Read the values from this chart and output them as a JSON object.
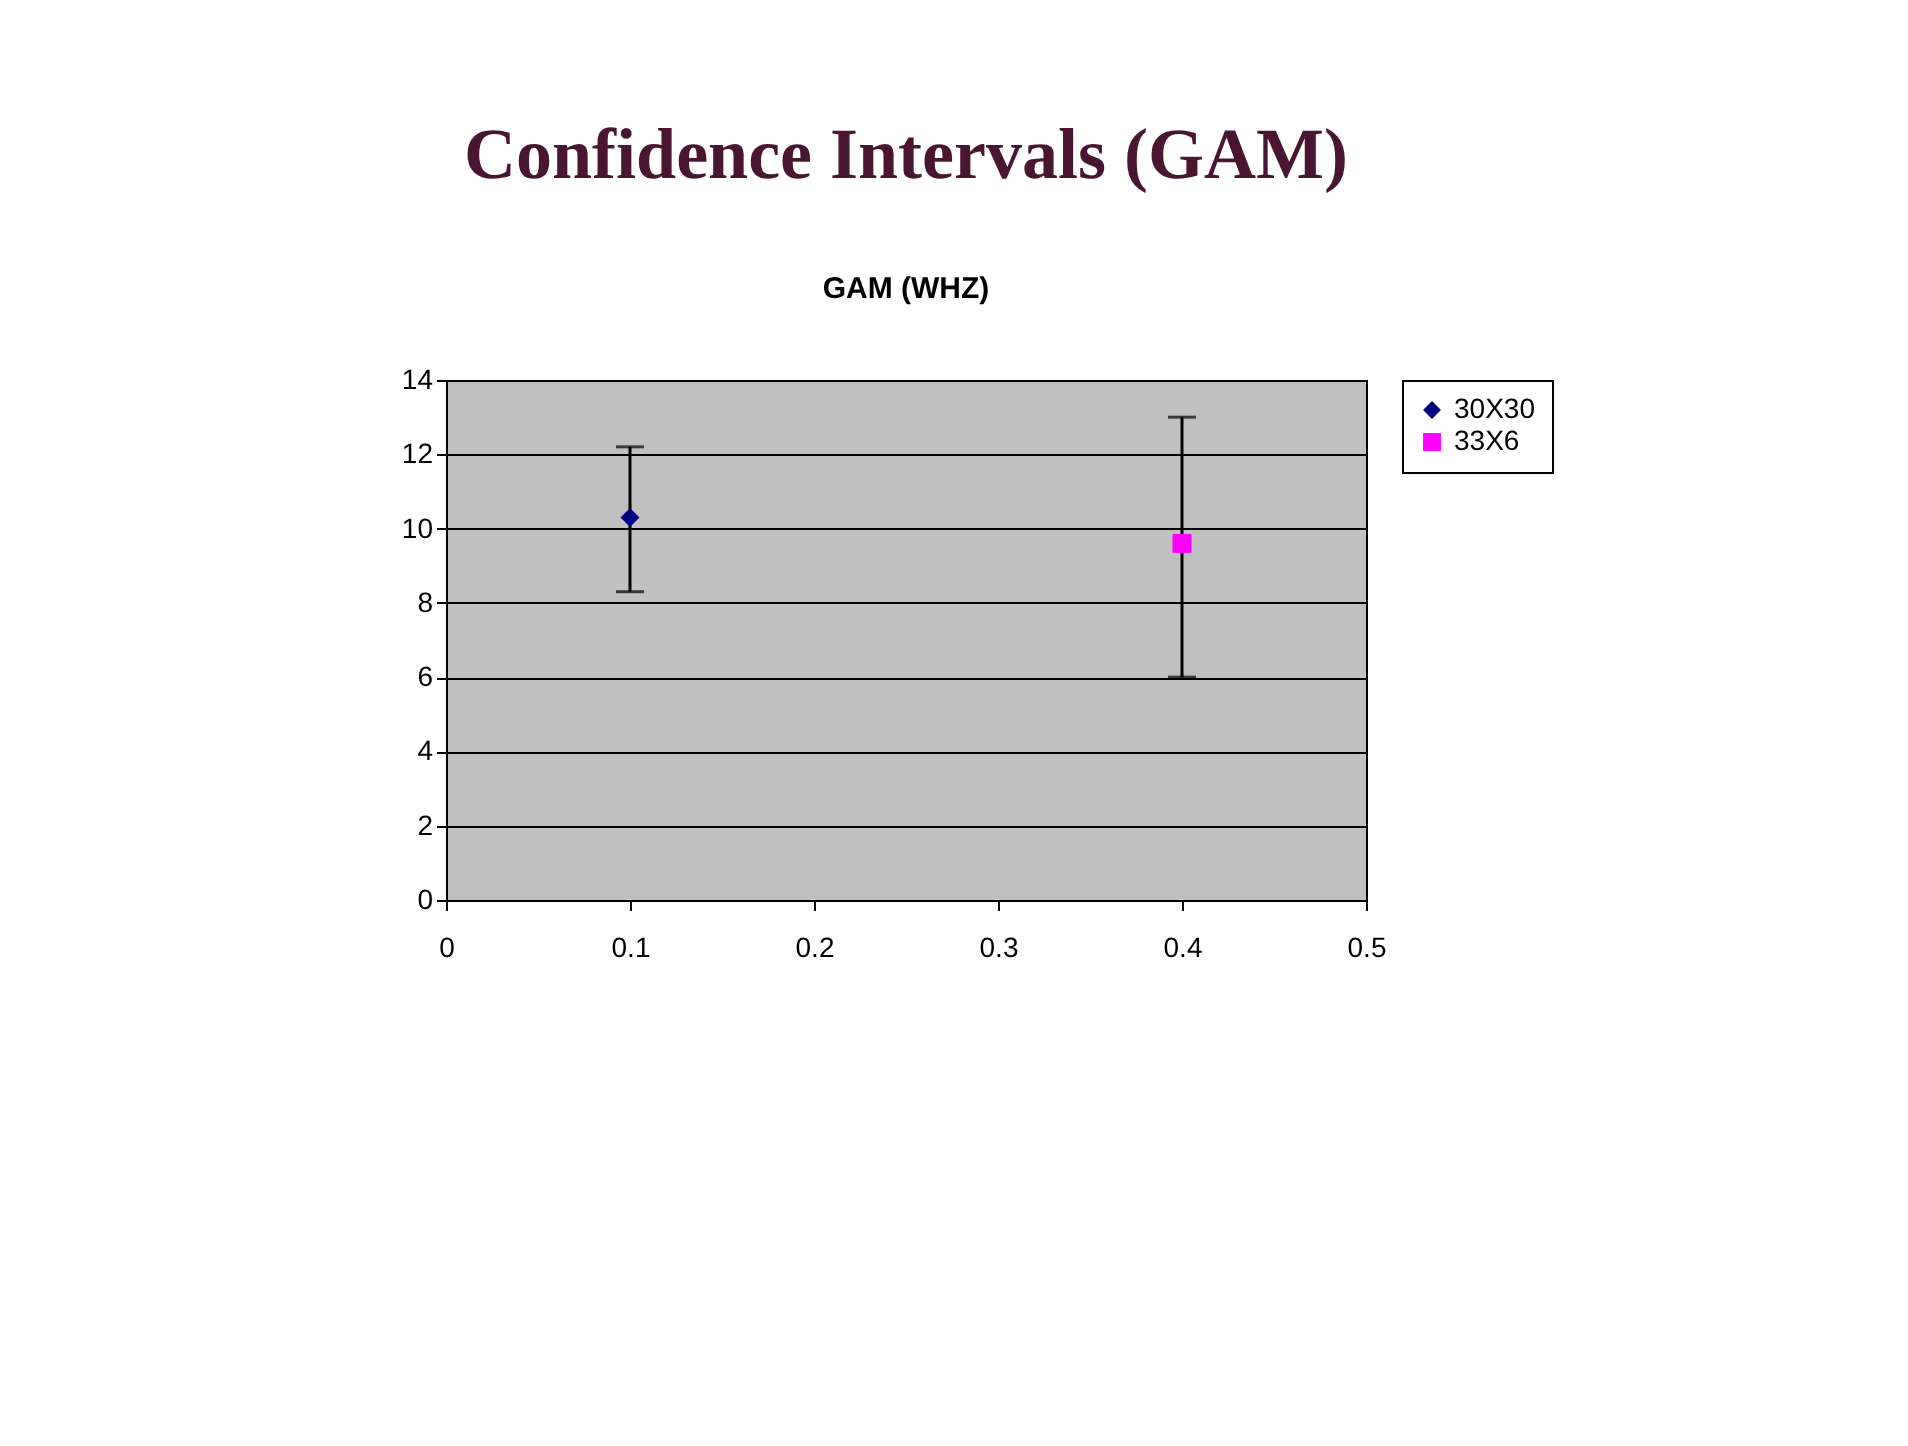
{
  "chart_data": {
    "type": "scatter",
    "title": "Confidence Intervals (GAM)",
    "subtitle": "GAM (WHZ)",
    "series": [
      {
        "name": "30X30",
        "color": "#000080",
        "marker": "diamond",
        "x": [
          0.1
        ],
        "values": [
          10.3
        ],
        "errors": [
          [
            8.3,
            12.2
          ]
        ]
      },
      {
        "name": "33X6",
        "color": "#ff00ff",
        "marker": "square",
        "x": [
          0.4
        ],
        "values": [
          9.6
        ],
        "errors": [
          [
            6.0,
            13.0
          ]
        ]
      }
    ],
    "xlim": [
      0,
      0.5
    ],
    "xticks": [
      0,
      0.1,
      0.2,
      0.3,
      0.4,
      0.5
    ],
    "ylim": [
      0,
      14
    ],
    "yticks": [
      0,
      2,
      4,
      6,
      8,
      10,
      12,
      14
    ],
    "grid": "y",
    "legend": "right"
  }
}
